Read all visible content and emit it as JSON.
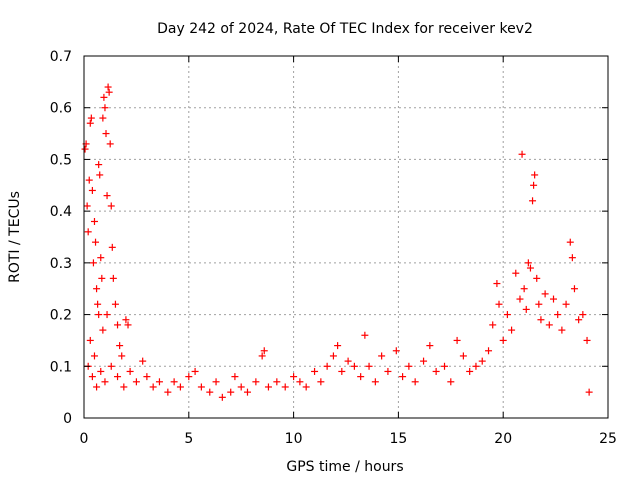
{
  "chart_data": {
    "type": "scatter",
    "title": "Day 242 of 2024, Rate Of TEC Index for receiver kev2",
    "xlabel": "GPS time / hours",
    "ylabel": "ROTI / TECUs",
    "xlim": [
      0,
      25
    ],
    "ylim": [
      0,
      0.7
    ],
    "xticks": [
      "0",
      "5",
      "10",
      "15",
      "20",
      "25"
    ],
    "yticks": [
      "0",
      "0.1",
      "0.2",
      "0.3",
      "0.4",
      "0.5",
      "0.6",
      "0.7"
    ],
    "grid": true,
    "marker": "+",
    "marker_color": "#ff0000",
    "series": [
      {
        "points": [
          [
            0.05,
            0.52
          ],
          [
            0.1,
            0.53
          ],
          [
            0.15,
            0.41
          ],
          [
            0.2,
            0.36
          ],
          [
            0.25,
            0.46
          ],
          [
            0.3,
            0.57
          ],
          [
            0.35,
            0.58
          ],
          [
            0.4,
            0.44
          ],
          [
            0.45,
            0.3
          ],
          [
            0.5,
            0.38
          ],
          [
            0.55,
            0.34
          ],
          [
            0.6,
            0.25
          ],
          [
            0.65,
            0.22
          ],
          [
            0.7,
            0.49
          ],
          [
            0.75,
            0.47
          ],
          [
            0.8,
            0.31
          ],
          [
            0.85,
            0.27
          ],
          [
            0.9,
            0.58
          ],
          [
            0.95,
            0.62
          ],
          [
            1.0,
            0.6
          ],
          [
            1.05,
            0.55
          ],
          [
            1.1,
            0.43
          ],
          [
            1.15,
            0.64
          ],
          [
            1.2,
            0.63
          ],
          [
            1.25,
            0.53
          ],
          [
            1.3,
            0.41
          ],
          [
            1.35,
            0.33
          ],
          [
            1.4,
            0.27
          ],
          [
            1.5,
            0.22
          ],
          [
            1.6,
            0.18
          ],
          [
            1.7,
            0.14
          ],
          [
            1.8,
            0.12
          ],
          [
            2.0,
            0.19
          ],
          [
            2.1,
            0.18
          ],
          [
            0.3,
            0.15
          ],
          [
            0.5,
            0.12
          ],
          [
            0.7,
            0.2
          ],
          [
            0.9,
            0.17
          ],
          [
            1.1,
            0.2
          ],
          [
            0.2,
            0.1
          ],
          [
            0.4,
            0.08
          ],
          [
            0.6,
            0.06
          ],
          [
            0.8,
            0.09
          ],
          [
            1.0,
            0.07
          ],
          [
            1.3,
            0.1
          ],
          [
            1.6,
            0.08
          ],
          [
            1.9,
            0.06
          ],
          [
            2.2,
            0.09
          ],
          [
            2.5,
            0.07
          ],
          [
            2.8,
            0.11
          ],
          [
            3.0,
            0.08
          ],
          [
            3.3,
            0.06
          ],
          [
            3.6,
            0.07
          ],
          [
            4.0,
            0.05
          ],
          [
            4.3,
            0.07
          ],
          [
            4.6,
            0.06
          ],
          [
            5.0,
            0.08
          ],
          [
            5.3,
            0.09
          ],
          [
            5.6,
            0.06
          ],
          [
            6.0,
            0.05
          ],
          [
            6.3,
            0.07
          ],
          [
            6.6,
            0.04
          ],
          [
            7.0,
            0.05
          ],
          [
            7.2,
            0.08
          ],
          [
            7.5,
            0.06
          ],
          [
            7.8,
            0.05
          ],
          [
            8.2,
            0.07
          ],
          [
            8.5,
            0.12
          ],
          [
            8.6,
            0.13
          ],
          [
            8.8,
            0.06
          ],
          [
            9.2,
            0.07
          ],
          [
            9.6,
            0.06
          ],
          [
            10.0,
            0.08
          ],
          [
            10.3,
            0.07
          ],
          [
            10.6,
            0.06
          ],
          [
            11.0,
            0.09
          ],
          [
            11.3,
            0.07
          ],
          [
            11.6,
            0.1
          ],
          [
            11.9,
            0.12
          ],
          [
            12.1,
            0.14
          ],
          [
            12.3,
            0.09
          ],
          [
            12.6,
            0.11
          ],
          [
            12.9,
            0.1
          ],
          [
            13.2,
            0.08
          ],
          [
            13.4,
            0.16
          ],
          [
            13.6,
            0.1
          ],
          [
            13.9,
            0.07
          ],
          [
            14.2,
            0.12
          ],
          [
            14.5,
            0.09
          ],
          [
            14.9,
            0.13
          ],
          [
            15.2,
            0.08
          ],
          [
            15.5,
            0.1
          ],
          [
            15.8,
            0.07
          ],
          [
            16.2,
            0.11
          ],
          [
            16.5,
            0.14
          ],
          [
            16.8,
            0.09
          ],
          [
            17.2,
            0.1
          ],
          [
            17.5,
            0.07
          ],
          [
            17.8,
            0.15
          ],
          [
            18.1,
            0.12
          ],
          [
            18.4,
            0.09
          ],
          [
            18.7,
            0.1
          ],
          [
            19.0,
            0.11
          ],
          [
            19.3,
            0.13
          ],
          [
            19.5,
            0.18
          ],
          [
            19.7,
            0.26
          ],
          [
            19.8,
            0.22
          ],
          [
            20.0,
            0.15
          ],
          [
            20.2,
            0.2
          ],
          [
            20.4,
            0.17
          ],
          [
            20.6,
            0.28
          ],
          [
            20.8,
            0.23
          ],
          [
            20.9,
            0.51
          ],
          [
            21.0,
            0.25
          ],
          [
            21.1,
            0.21
          ],
          [
            21.2,
            0.3
          ],
          [
            21.3,
            0.29
          ],
          [
            21.4,
            0.42
          ],
          [
            21.5,
            0.47
          ],
          [
            21.45,
            0.45
          ],
          [
            21.6,
            0.27
          ],
          [
            21.7,
            0.22
          ],
          [
            21.8,
            0.19
          ],
          [
            22.0,
            0.24
          ],
          [
            22.2,
            0.18
          ],
          [
            22.4,
            0.23
          ],
          [
            22.6,
            0.2
          ],
          [
            22.8,
            0.17
          ],
          [
            23.0,
            0.22
          ],
          [
            23.2,
            0.34
          ],
          [
            23.3,
            0.31
          ],
          [
            23.4,
            0.25
          ],
          [
            23.6,
            0.19
          ],
          [
            23.8,
            0.2
          ],
          [
            24.0,
            0.15
          ],
          [
            24.1,
            0.05
          ]
        ]
      }
    ]
  }
}
